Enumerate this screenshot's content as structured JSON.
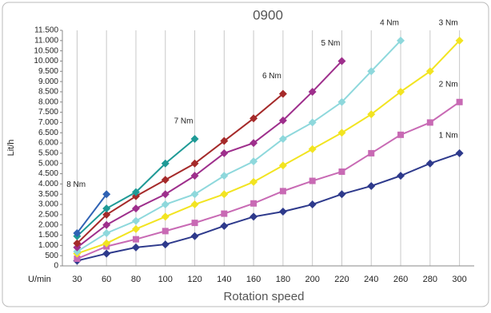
{
  "chart_data": {
    "type": "line",
    "title": "0900",
    "y_label": "Lit/h",
    "x_label": "Rotation speed",
    "x_unit": "U/min",
    "categories": [
      "30",
      "60",
      "80",
      "100",
      "120",
      "140",
      "160",
      "180",
      "200",
      "220",
      "240",
      "260",
      "280",
      "300"
    ],
    "ylim": [
      0,
      11500
    ],
    "yticks": [
      0,
      500,
      {
        "value": 1000,
        "label": "1.000"
      },
      {
        "value": 1500,
        "label": "1.500"
      },
      {
        "value": 2000,
        "label": "2.000"
      },
      {
        "value": 2500,
        "label": "2.500"
      },
      {
        "value": 3000,
        "label": "3.000"
      },
      {
        "value": 3500,
        "label": "3.500"
      },
      {
        "value": 4000,
        "label": "4.000"
      },
      {
        "value": 4500,
        "label": "4.500"
      },
      {
        "value": 5000,
        "label": "5.000"
      },
      {
        "value": 5500,
        "label": "5.500"
      },
      {
        "value": 6000,
        "label": "6.000"
      },
      {
        "value": 6500,
        "label": "6.500"
      },
      {
        "value": 7000,
        "label": "7.000"
      },
      {
        "value": 7500,
        "label": "7.500"
      },
      {
        "value": 8000,
        "label": "8.000"
      },
      {
        "value": 8500,
        "label": "8.500"
      },
      {
        "value": 9000,
        "label": "9.000"
      },
      {
        "value": 9500,
        "label": "9.500"
      },
      {
        "value": 10000,
        "label": "10.000"
      },
      {
        "value": 10500,
        "label": "10.500"
      },
      {
        "value": 11000,
        "label": "11.000"
      },
      {
        "value": 11500,
        "label": "11.500"
      }
    ],
    "grid": true,
    "series": [
      {
        "name": "1 Nm",
        "color": "#2e3a8c",
        "marker": "diamond",
        "values": [
          250,
          600,
          900,
          1050,
          1450,
          1950,
          2400,
          2650,
          3000,
          3500,
          3900,
          4400,
          5000,
          5500
        ]
      },
      {
        "name": "2 Nm",
        "color": "#c86ab4",
        "marker": "square",
        "values": [
          350,
          950,
          1300,
          1700,
          2100,
          2550,
          3050,
          3650,
          4150,
          4600,
          5500,
          6400,
          7000,
          8000
        ]
      },
      {
        "name": "3 Nm",
        "color": "#f2e421",
        "marker": "diamond",
        "values": [
          600,
          1100,
          1800,
          2400,
          3000,
          3500,
          4100,
          4900,
          5700,
          6500,
          7400,
          8500,
          9500,
          11000
        ]
      },
      {
        "name": "4 Nm",
        "color": "#8ed8dc",
        "marker": "diamond",
        "values": [
          700,
          1600,
          2200,
          3000,
          3500,
          4400,
          5100,
          6200,
          7000,
          8000,
          9500,
          11000,
          null,
          null
        ]
      },
      {
        "name": "5 Nm",
        "color": "#9e2f8c",
        "marker": "diamond",
        "values": [
          900,
          2000,
          2800,
          3500,
          4400,
          5500,
          6000,
          7100,
          8500,
          10000,
          null,
          null,
          null,
          null
        ]
      },
      {
        "name": "6 Nm",
        "color": "#a52a2a",
        "marker": "diamond",
        "values": [
          1100,
          2500,
          3400,
          4200,
          5000,
          6100,
          7200,
          8400,
          null,
          null,
          null,
          null,
          null,
          null
        ]
      },
      {
        "name": "7 Nm",
        "color": "#1f9a96",
        "marker": "diamond",
        "values": [
          1450,
          2800,
          3600,
          5000,
          6200,
          null,
          null,
          null,
          null,
          null,
          null,
          null,
          null,
          null
        ]
      },
      {
        "name": "8 Nm",
        "color": "#2f62b4",
        "marker": "diamond",
        "values": [
          1600,
          3500,
          null,
          null,
          null,
          null,
          null,
          null,
          null,
          null,
          null,
          null,
          null,
          null
        ]
      }
    ]
  }
}
